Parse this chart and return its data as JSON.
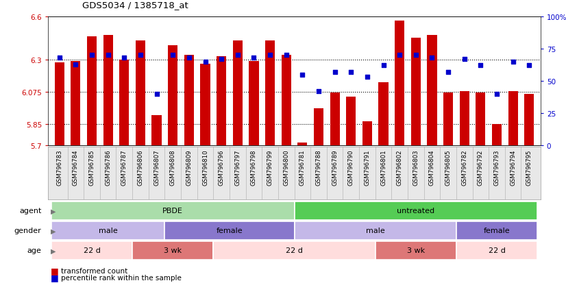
{
  "title": "GDS5034 / 1385718_at",
  "samples": [
    "GSM796783",
    "GSM796784",
    "GSM796785",
    "GSM796786",
    "GSM796787",
    "GSM796806",
    "GSM796807",
    "GSM796808",
    "GSM796809",
    "GSM796810",
    "GSM796796",
    "GSM796797",
    "GSM796798",
    "GSM796799",
    "GSM796800",
    "GSM796781",
    "GSM796788",
    "GSM796789",
    "GSM796790",
    "GSM796791",
    "GSM796801",
    "GSM796802",
    "GSM796803",
    "GSM796804",
    "GSM796805",
    "GSM796782",
    "GSM796792",
    "GSM796793",
    "GSM796794",
    "GSM796795"
  ],
  "red_values": [
    6.28,
    6.29,
    6.46,
    6.47,
    6.3,
    6.43,
    5.91,
    6.4,
    6.33,
    6.27,
    6.32,
    6.43,
    6.29,
    6.43,
    6.33,
    5.72,
    5.96,
    6.07,
    6.04,
    5.87,
    6.14,
    6.57,
    6.45,
    6.47,
    6.07,
    6.08,
    6.07,
    5.85,
    6.08,
    6.06
  ],
  "blue_values": [
    68,
    63,
    70,
    70,
    68,
    70,
    40,
    70,
    68,
    65,
    67,
    70,
    68,
    70,
    70,
    55,
    42,
    57,
    57,
    53,
    62,
    70,
    70,
    68,
    57,
    67,
    62,
    40,
    65,
    62
  ],
  "ymin": 5.7,
  "ymax": 6.6,
  "yticks": [
    5.7,
    5.85,
    6.075,
    6.3,
    6.6
  ],
  "ytick_labels": [
    "5.7",
    "5.85",
    "6.075",
    "6.3",
    "6.6"
  ],
  "right_yticks": [
    0,
    25,
    50,
    75,
    100
  ],
  "right_ytick_labels": [
    "0",
    "25",
    "50",
    "75",
    "100%"
  ],
  "bar_color": "#cc0000",
  "dot_color": "#0000cc",
  "agent_groups": [
    {
      "label": "PBDE",
      "start": 0,
      "end": 14,
      "color": "#aaddaa"
    },
    {
      "label": "untreated",
      "start": 15,
      "end": 29,
      "color": "#55cc55"
    }
  ],
  "gender_groups": [
    {
      "label": "male",
      "start": 0,
      "end": 6,
      "color": "#c4b8e8"
    },
    {
      "label": "female",
      "start": 7,
      "end": 14,
      "color": "#8877cc"
    },
    {
      "label": "male",
      "start": 15,
      "end": 24,
      "color": "#c4b8e8"
    },
    {
      "label": "female",
      "start": 25,
      "end": 29,
      "color": "#8877cc"
    }
  ],
  "age_groups": [
    {
      "label": "22 d",
      "start": 0,
      "end": 4,
      "color": "#ffdddd"
    },
    {
      "label": "3 wk",
      "start": 5,
      "end": 9,
      "color": "#dd7777"
    },
    {
      "label": "22 d",
      "start": 10,
      "end": 19,
      "color": "#ffdddd"
    },
    {
      "label": "3 wk",
      "start": 20,
      "end": 24,
      "color": "#dd7777"
    },
    {
      "label": "22 d",
      "start": 25,
      "end": 29,
      "color": "#ffdddd"
    }
  ],
  "legend_items": [
    {
      "color": "#cc0000",
      "label": "transformed count"
    },
    {
      "color": "#0000cc",
      "label": "percentile rank within the sample"
    }
  ],
  "row_labels": [
    "agent",
    "gender",
    "age"
  ],
  "tick_label_color": "#cc0000",
  "right_tick_color": "#0000cc",
  "bg_color": "#e8e8e8"
}
